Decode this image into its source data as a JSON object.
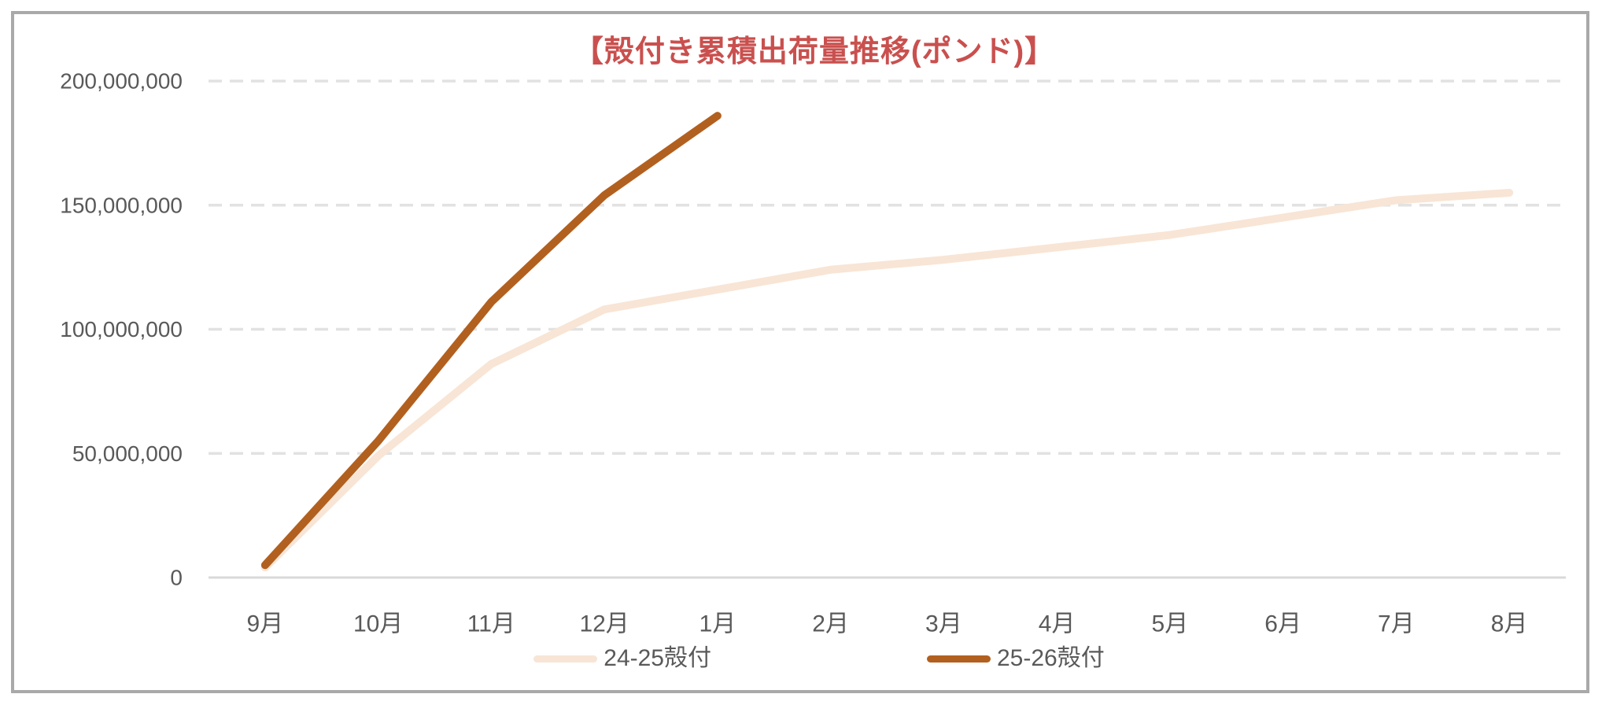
{
  "chart_data": {
    "type": "line",
    "title": "【殻付き累積出荷量推移(ポンド)】",
    "title_color": "#C9504E",
    "axis_text_color": "#595959",
    "gridline_color": "#E2E2E2",
    "axis_line_color": "#D9D9D9",
    "grid": "horizontal dashed, solid baseline at 0",
    "legend_position": "bottom center",
    "xlabel": "",
    "ylabel": "",
    "ylim": [
      0,
      200000000
    ],
    "categories": [
      "9月",
      "10月",
      "11月",
      "12月",
      "1月",
      "2月",
      "3月",
      "4月",
      "5月",
      "6月",
      "7月",
      "8月"
    ],
    "y_ticks": [
      {
        "value": 0,
        "label": "0"
      },
      {
        "value": 50000000,
        "label": "50,000,000"
      },
      {
        "value": 100000000,
        "label": "100,000,000"
      },
      {
        "value": 150000000,
        "label": "150,000,000"
      },
      {
        "value": 200000000,
        "label": "200,000,000"
      }
    ],
    "series": [
      {
        "name": "24-25殻付",
        "color": "#F8E5D5",
        "values": [
          4000000,
          49000000,
          86000000,
          108000000,
          116000000,
          124000000,
          128000000,
          133000000,
          138000000,
          145000000,
          152000000,
          155000000
        ]
      },
      {
        "name": "25-26殻付",
        "color": "#B2601F",
        "values": [
          5000000,
          55000000,
          111000000,
          154000000,
          186000000,
          null,
          null,
          null,
          null,
          null,
          null,
          null
        ]
      }
    ]
  }
}
